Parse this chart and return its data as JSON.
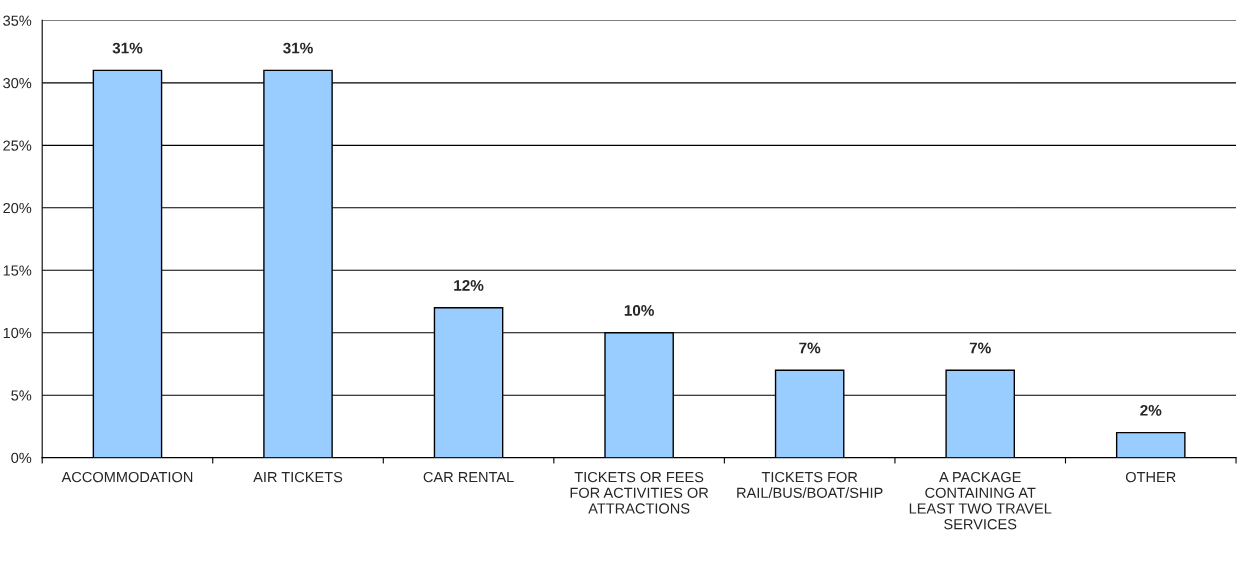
{
  "chart_data": {
    "type": "bar",
    "categories": [
      "ACCOMMODATION",
      "AIR TICKETS",
      "CAR RENTAL",
      "TICKETS OR FEES\nFOR ACTIVITIES OR\nATTRACTIONS",
      "TICKETS FOR\nRAIL/BUS/BOAT/SHIP",
      "A PACKAGE\nCONTAINING AT\nLEAST TWO TRAVEL\nSERVICES",
      "OTHER"
    ],
    "values": [
      31,
      31,
      12,
      10,
      7,
      7,
      2
    ],
    "value_labels": [
      "31%",
      "31%",
      "12%",
      "10%",
      "7%",
      "7%",
      "2%"
    ],
    "color": "#99ccff",
    "ylim": [
      0,
      35
    ],
    "yticks": [
      {
        "value": 0,
        "label": "0%"
      },
      {
        "value": 5,
        "label": "5%"
      },
      {
        "value": 10,
        "label": "10%"
      },
      {
        "value": 15,
        "label": "15%"
      },
      {
        "value": 20,
        "label": "20%"
      },
      {
        "value": 25,
        "label": "25%"
      },
      {
        "value": 30,
        "label": "30%"
      },
      {
        "value": 35,
        "label": "35%"
      }
    ],
    "grid": "y",
    "legend": false
  }
}
